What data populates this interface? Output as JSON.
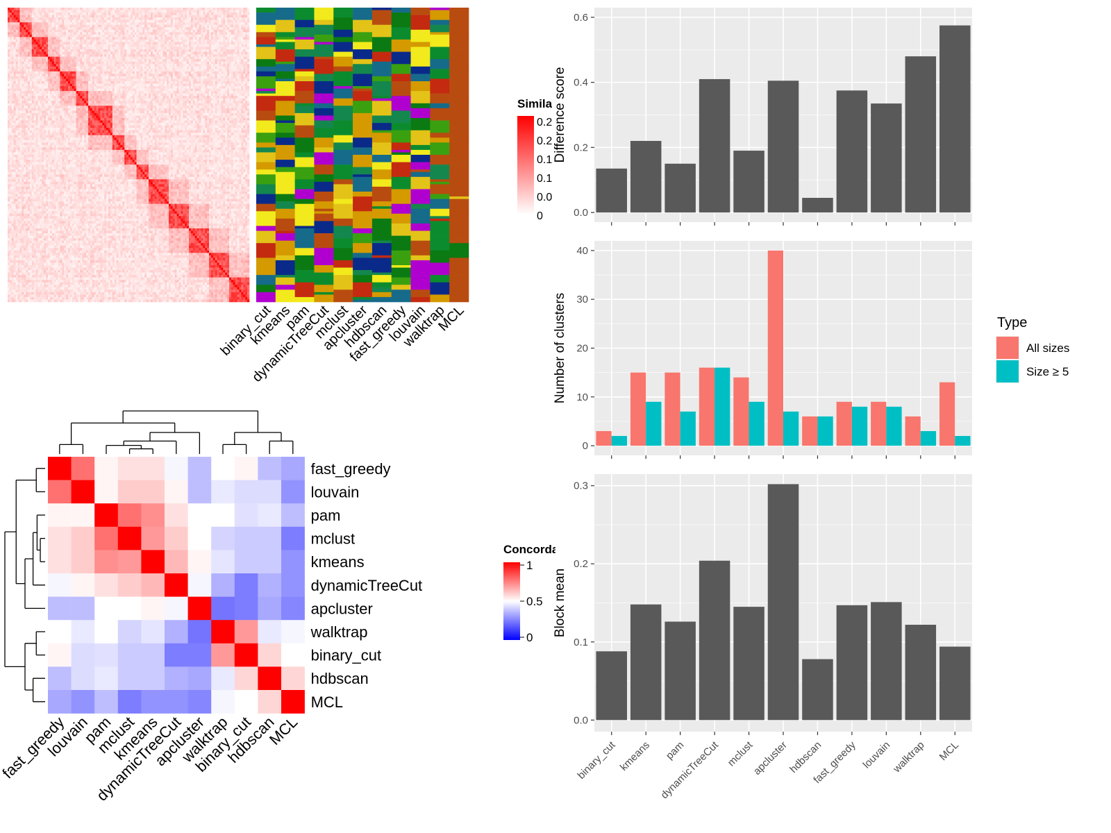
{
  "chart_data": [
    {
      "type": "heatmap",
      "panel": "similarity-heatmap",
      "legend_title": "Similarity",
      "legend_ticks": [
        "0.2",
        "0.2",
        "0.1",
        "0.1",
        "0.0",
        "0"
      ],
      "colors": {
        "low": "#ffffff",
        "high": "#ff0000"
      },
      "n": 120,
      "methods": [
        "binary_cut",
        "kmeans",
        "pam",
        "dynamicTreeCut",
        "mclust",
        "apcluster",
        "hdbscan",
        "fast_greedy",
        "louvain",
        "walktrap",
        "MCL"
      ]
    },
    {
      "type": "heatmap",
      "panel": "concordance-heatmap",
      "legend_title": "Concordance",
      "legend_ticks": [
        "1",
        "0.5",
        "0"
      ],
      "colors": {
        "low": "#0000ff",
        "mid": "#ffffff",
        "high": "#ff0000"
      },
      "rows": [
        "fast_greedy",
        "louvain",
        "pam",
        "mclust",
        "kmeans",
        "dynamicTreeCut",
        "apcluster",
        "walktrap",
        "binary_cut",
        "hdbscan",
        "MCL"
      ],
      "cols": [
        "fast_greedy",
        "louvain",
        "pam",
        "mclust",
        "kmeans",
        "dynamicTreeCut",
        "apcluster",
        "walktrap",
        "binary_cut",
        "hdbscan",
        "MCL"
      ],
      "values": [
        [
          1.0,
          0.78,
          0.52,
          0.56,
          0.56,
          0.48,
          0.35,
          0.5,
          0.52,
          0.35,
          0.3
        ],
        [
          0.78,
          1.0,
          0.52,
          0.6,
          0.6,
          0.52,
          0.35,
          0.45,
          0.42,
          0.42,
          0.25
        ],
        [
          0.52,
          0.52,
          1.0,
          0.78,
          0.72,
          0.56,
          0.5,
          0.5,
          0.43,
          0.45,
          0.35
        ],
        [
          0.56,
          0.6,
          0.78,
          1.0,
          0.7,
          0.6,
          0.5,
          0.4,
          0.38,
          0.38,
          0.2
        ],
        [
          0.56,
          0.6,
          0.72,
          0.7,
          1.0,
          0.64,
          0.52,
          0.44,
          0.38,
          0.38,
          0.25
        ],
        [
          0.48,
          0.52,
          0.56,
          0.6,
          0.64,
          1.0,
          0.48,
          0.32,
          0.2,
          0.32,
          0.25
        ],
        [
          0.35,
          0.35,
          0.5,
          0.5,
          0.52,
          0.48,
          1.0,
          0.18,
          0.2,
          0.3,
          0.22
        ],
        [
          0.5,
          0.45,
          0.5,
          0.4,
          0.44,
          0.32,
          0.18,
          1.0,
          0.7,
          0.45,
          0.48
        ],
        [
          0.52,
          0.42,
          0.43,
          0.38,
          0.38,
          0.2,
          0.2,
          0.7,
          1.0,
          0.58,
          0.5
        ],
        [
          0.35,
          0.42,
          0.45,
          0.38,
          0.38,
          0.32,
          0.3,
          0.45,
          0.58,
          1.0,
          0.58
        ],
        [
          0.3,
          0.25,
          0.35,
          0.2,
          0.25,
          0.25,
          0.22,
          0.48,
          0.5,
          0.58,
          1.0
        ]
      ]
    },
    {
      "type": "bar",
      "panel": "difference-score",
      "categories": [
        "binary_cut",
        "kmeans",
        "pam",
        "dynamicTreeCut",
        "mclust",
        "apcluster",
        "hdbscan",
        "fast_greedy",
        "louvain",
        "walktrap",
        "MCL"
      ],
      "values": [
        0.135,
        0.22,
        0.15,
        0.41,
        0.19,
        0.405,
        0.045,
        0.375,
        0.335,
        0.48,
        0.575
      ],
      "ylabel": "Difference score",
      "ylim": [
        0,
        0.6
      ],
      "yticks": [
        0.0,
        0.2,
        0.4,
        0.6
      ],
      "bar_color": "#595959",
      "grid": true
    },
    {
      "type": "bar",
      "panel": "number-of-clusters",
      "categories": [
        "binary_cut",
        "kmeans",
        "pam",
        "dynamicTreeCut",
        "mclust",
        "apcluster",
        "hdbscan",
        "fast_greedy",
        "louvain",
        "walktrap",
        "MCL"
      ],
      "series": [
        {
          "name": "All sizes",
          "color": "#f8766d",
          "values": [
            3,
            15,
            15,
            16,
            14,
            40,
            6,
            9,
            9,
            6,
            13
          ]
        },
        {
          "name": "Size ≥ 5",
          "color": "#00bfc4",
          "values": [
            2,
            9,
            7,
            16,
            9,
            7,
            6,
            8,
            8,
            3,
            2
          ]
        }
      ],
      "ylabel": "Number of clusters",
      "ylim": [
        0,
        40
      ],
      "yticks": [
        0,
        10,
        20,
        30,
        40
      ],
      "legend_title": "Type",
      "legend_position": "right",
      "grid": true
    },
    {
      "type": "bar",
      "panel": "block-mean",
      "categories": [
        "binary_cut",
        "kmeans",
        "pam",
        "dynamicTreeCut",
        "mclust",
        "apcluster",
        "hdbscan",
        "fast_greedy",
        "louvain",
        "walktrap",
        "MCL"
      ],
      "values": [
        0.088,
        0.148,
        0.126,
        0.204,
        0.145,
        0.302,
        0.078,
        0.147,
        0.151,
        0.122,
        0.094
      ],
      "ylabel": "Block mean",
      "ylim": [
        0,
        0.3
      ],
      "yticks": [
        0.0,
        0.1,
        0.2,
        0.3
      ],
      "bar_color": "#595959",
      "grid": true
    }
  ]
}
